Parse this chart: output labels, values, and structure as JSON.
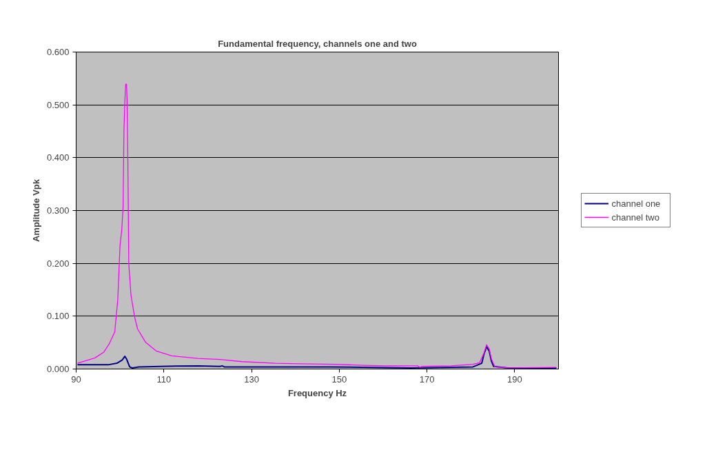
{
  "chart_data": {
    "type": "line",
    "title": "Fundamental frequency, channels one and two",
    "xlabel": "Frequency Hz",
    "ylabel": "Amplitude Vpk",
    "xlim": [
      90,
      200
    ],
    "xticks": [
      90,
      110,
      130,
      150,
      170,
      190
    ],
    "ylim": [
      0,
      0.6
    ],
    "yticks": [
      {
        "value": 0,
        "label": "0.000"
      },
      {
        "value": 0.1,
        "label": "0.100"
      },
      {
        "value": 0.2,
        "label": "0.200"
      },
      {
        "value": 0.3,
        "label": "0.300"
      },
      {
        "value": 0.4,
        "label": "0.400"
      },
      {
        "value": 0.5,
        "label": "0.500"
      },
      {
        "value": 0.6,
        "label": "0.600"
      }
    ],
    "grid": "y",
    "legend": "right",
    "marker": "none",
    "line_style": "solid",
    "series": [
      {
        "name": "channel one",
        "color": "#000080",
        "x": [
          90.3,
          97.3,
          99.3,
          100.5,
          101.1,
          101.5,
          102.2,
          102.8,
          104.3,
          109.2,
          117.8,
          122.8,
          123.3,
          123.8,
          147.9,
          166.4,
          180.5,
          182.5,
          183.0,
          183.6,
          184.2,
          184.7,
          185.2,
          188.5,
          199.5
        ],
        "values": [
          0.008,
          0.008,
          0.011,
          0.017,
          0.024,
          0.019,
          0.004,
          0.002,
          0.004,
          0.005,
          0.006,
          0.005,
          0.006,
          0.004,
          0.004,
          0.002,
          0.004,
          0.011,
          0.028,
          0.042,
          0.034,
          0.015,
          0.005,
          0.002,
          0.002
        ]
      },
      {
        "name": "channel two",
        "color": "#ff00ff",
        "x": [
          90.3,
          94.3,
          96.3,
          97.5,
          98.8,
          99.5,
          100.0,
          100.4,
          100.7,
          100.9,
          101.1,
          101.3,
          101.5,
          101.6,
          101.8,
          102.0,
          102.5,
          103.3,
          104.0,
          105.8,
          108.3,
          111.8,
          117.8,
          122.8,
          127.8,
          135.4,
          140.8,
          148.9,
          155.4,
          160.4,
          167.9,
          168.4,
          168.9,
          175.5,
          180.5,
          182.0,
          183.0,
          183.6,
          184.2,
          184.7,
          185.5,
          188.5,
          199.5
        ],
        "values": [
          0.011,
          0.021,
          0.032,
          0.047,
          0.07,
          0.132,
          0.234,
          0.263,
          0.306,
          0.45,
          0.505,
          0.539,
          0.539,
          0.51,
          0.391,
          0.2,
          0.14,
          0.1,
          0.076,
          0.051,
          0.034,
          0.025,
          0.02,
          0.018,
          0.014,
          0.011,
          0.01,
          0.009,
          0.007,
          0.006,
          0.006,
          0.003,
          0.005,
          0.006,
          0.009,
          0.012,
          0.03,
          0.046,
          0.038,
          0.019,
          0.004,
          0.002,
          0.003
        ]
      }
    ]
  }
}
